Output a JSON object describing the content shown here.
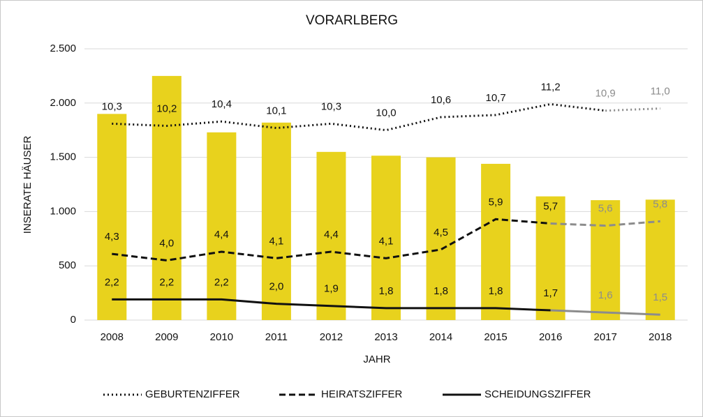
{
  "chart_data": {
    "type": "bar",
    "title": "VORARLBERG",
    "x_label": "JAHR",
    "y_label": "INSERATE HÄUSER",
    "categories": [
      "2008",
      "2009",
      "2010",
      "2011",
      "2012",
      "2013",
      "2014",
      "2015",
      "2016",
      "2017",
      "2018"
    ],
    "values": [
      1900,
      2250,
      1730,
      1820,
      1550,
      1515,
      1500,
      1440,
      1140,
      1105,
      1110
    ],
    "color": "#e8d21d",
    "ylim": [
      0,
      2500
    ],
    "yticks": [
      0,
      500,
      {
        "value": 1000,
        "label": "1.000"
      },
      {
        "value": 1500,
        "label": "1.500"
      },
      {
        "value": 2000,
        "label": "2.000"
      },
      {
        "value": 2500,
        "label": "2.500"
      }
    ],
    "y2lim": [
      1.25,
      13.75
    ],
    "grid": true,
    "legend": "bottom",
    "series": [
      {
        "name": "GEBURTENZIFFER",
        "type": "line",
        "axis": "y2",
        "color": "#111111",
        "dash": "dotted",
        "faded_from": 9,
        "values": [
          10.3,
          10.2,
          10.4,
          10.1,
          10.3,
          10.0,
          10.6,
          10.7,
          11.2,
          10.9,
          11.0
        ],
        "value_labels": [
          "10,3",
          "10,2",
          "10,4",
          "10,1",
          "10,3",
          "10,0",
          "10,6",
          "10,7",
          "11,2",
          "10,9",
          "11,0"
        ]
      },
      {
        "name": "HEIRATSZIFFER",
        "type": "line",
        "axis": "y2",
        "color": "#111111",
        "dash": "dashed",
        "faded_from": 8,
        "values": [
          4.3,
          4.0,
          4.4,
          4.1,
          4.4,
          4.1,
          4.5,
          5.9,
          5.7,
          5.6,
          5.8
        ],
        "value_labels": [
          "4,3",
          "4,0",
          "4,4",
          "4,1",
          "4,4",
          "4,1",
          "4,5",
          "5,9",
          "5,7",
          "5,6",
          "5,8"
        ]
      },
      {
        "name": "SCHEIDUNGSZIFFER",
        "type": "line",
        "axis": "y2",
        "color": "#111111",
        "dash": "solid",
        "faded_from": 8,
        "values": [
          2.2,
          2.2,
          2.2,
          2.0,
          1.9,
          1.8,
          1.8,
          1.8,
          1.7,
          1.6,
          1.5
        ],
        "value_labels": [
          "2,2",
          "2,2",
          "2,2",
          "2,0",
          "1,9",
          "1,8",
          "1,8",
          "1,8",
          "1,7",
          "1,6",
          "1,5"
        ]
      }
    ],
    "faded_color": "#8c8c8c"
  }
}
